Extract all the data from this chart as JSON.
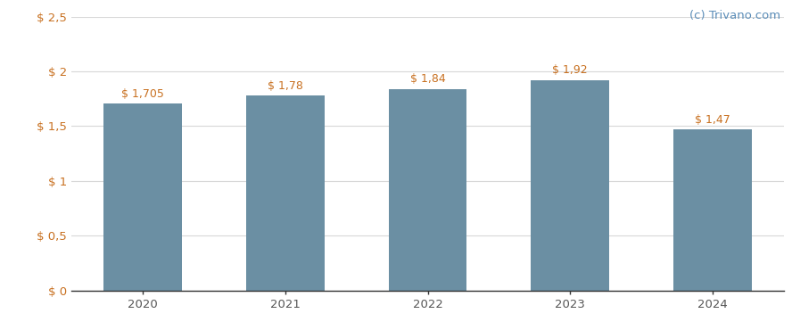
{
  "categories": [
    "2020",
    "2021",
    "2022",
    "2023",
    "2024"
  ],
  "values": [
    1.705,
    1.78,
    1.84,
    1.92,
    1.47
  ],
  "labels": [
    "$ 1,705",
    "$ 1,78",
    "$ 1,84",
    "$ 1,92",
    "$ 1,47"
  ],
  "bar_color": "#6b8fa3",
  "background_color": "#ffffff",
  "ylim": [
    0,
    2.5
  ],
  "yticks": [
    0,
    0.5,
    1.0,
    1.5,
    2.0,
    2.5
  ],
  "ytick_labels": [
    "$ 0",
    "$ 0,5",
    "$ 1",
    "$ 1,5",
    "$ 2",
    "$ 2,5"
  ],
  "grid_color": "#d8d8d8",
  "watermark": "(c) Trivano.com",
  "watermark_color": "#5b8db8",
  "bar_width": 0.55,
  "label_fontsize": 9.0,
  "tick_fontsize": 9.5,
  "label_color": "#c87020",
  "ytick_color": "#c87020",
  "xtick_color": "#555555",
  "watermark_fontsize": 9.5
}
